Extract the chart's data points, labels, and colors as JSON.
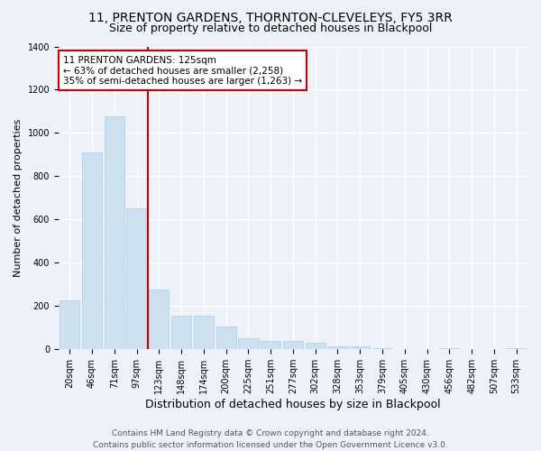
{
  "title": "11, PRENTON GARDENS, THORNTON-CLEVELEYS, FY5 3RR",
  "subtitle": "Size of property relative to detached houses in Blackpool",
  "xlabel": "Distribution of detached houses by size in Blackpool",
  "ylabel": "Number of detached properties",
  "footer_line1": "Contains HM Land Registry data © Crown copyright and database right 2024.",
  "footer_line2": "Contains public sector information licensed under the Open Government Licence v3.0.",
  "bar_labels": [
    "20sqm",
    "46sqm",
    "71sqm",
    "97sqm",
    "123sqm",
    "148sqm",
    "174sqm",
    "200sqm",
    "225sqm",
    "251sqm",
    "277sqm",
    "302sqm",
    "328sqm",
    "353sqm",
    "379sqm",
    "405sqm",
    "430sqm",
    "456sqm",
    "482sqm",
    "507sqm",
    "533sqm"
  ],
  "bar_values": [
    225,
    910,
    1075,
    650,
    275,
    155,
    155,
    105,
    50,
    40,
    40,
    30,
    15,
    15,
    5,
    0,
    0,
    5,
    0,
    0,
    5
  ],
  "bar_color": "#cce0f0",
  "bar_edge_color": "#aaccee",
  "vline_x_index": 4,
  "vline_color": "#cc0000",
  "annotation_line1": "11 PRENTON GARDENS: 125sqm",
  "annotation_line2": "← 63% of detached houses are smaller (2,258)",
  "annotation_line3": "35% of semi-detached houses are larger (1,263) →",
  "annotation_box_color": "#ffffff",
  "annotation_box_edge_color": "#cc0000",
  "ylim": [
    0,
    1400
  ],
  "yticks": [
    0,
    200,
    400,
    600,
    800,
    1000,
    1200,
    1400
  ],
  "bg_color": "#eef2f8",
  "plot_bg_color": "#eef2f8",
  "grid_color": "#ffffff",
  "title_fontsize": 10,
  "subtitle_fontsize": 9,
  "xlabel_fontsize": 9,
  "ylabel_fontsize": 8,
  "tick_fontsize": 7,
  "annotation_fontsize": 7.5,
  "footer_fontsize": 6.5
}
